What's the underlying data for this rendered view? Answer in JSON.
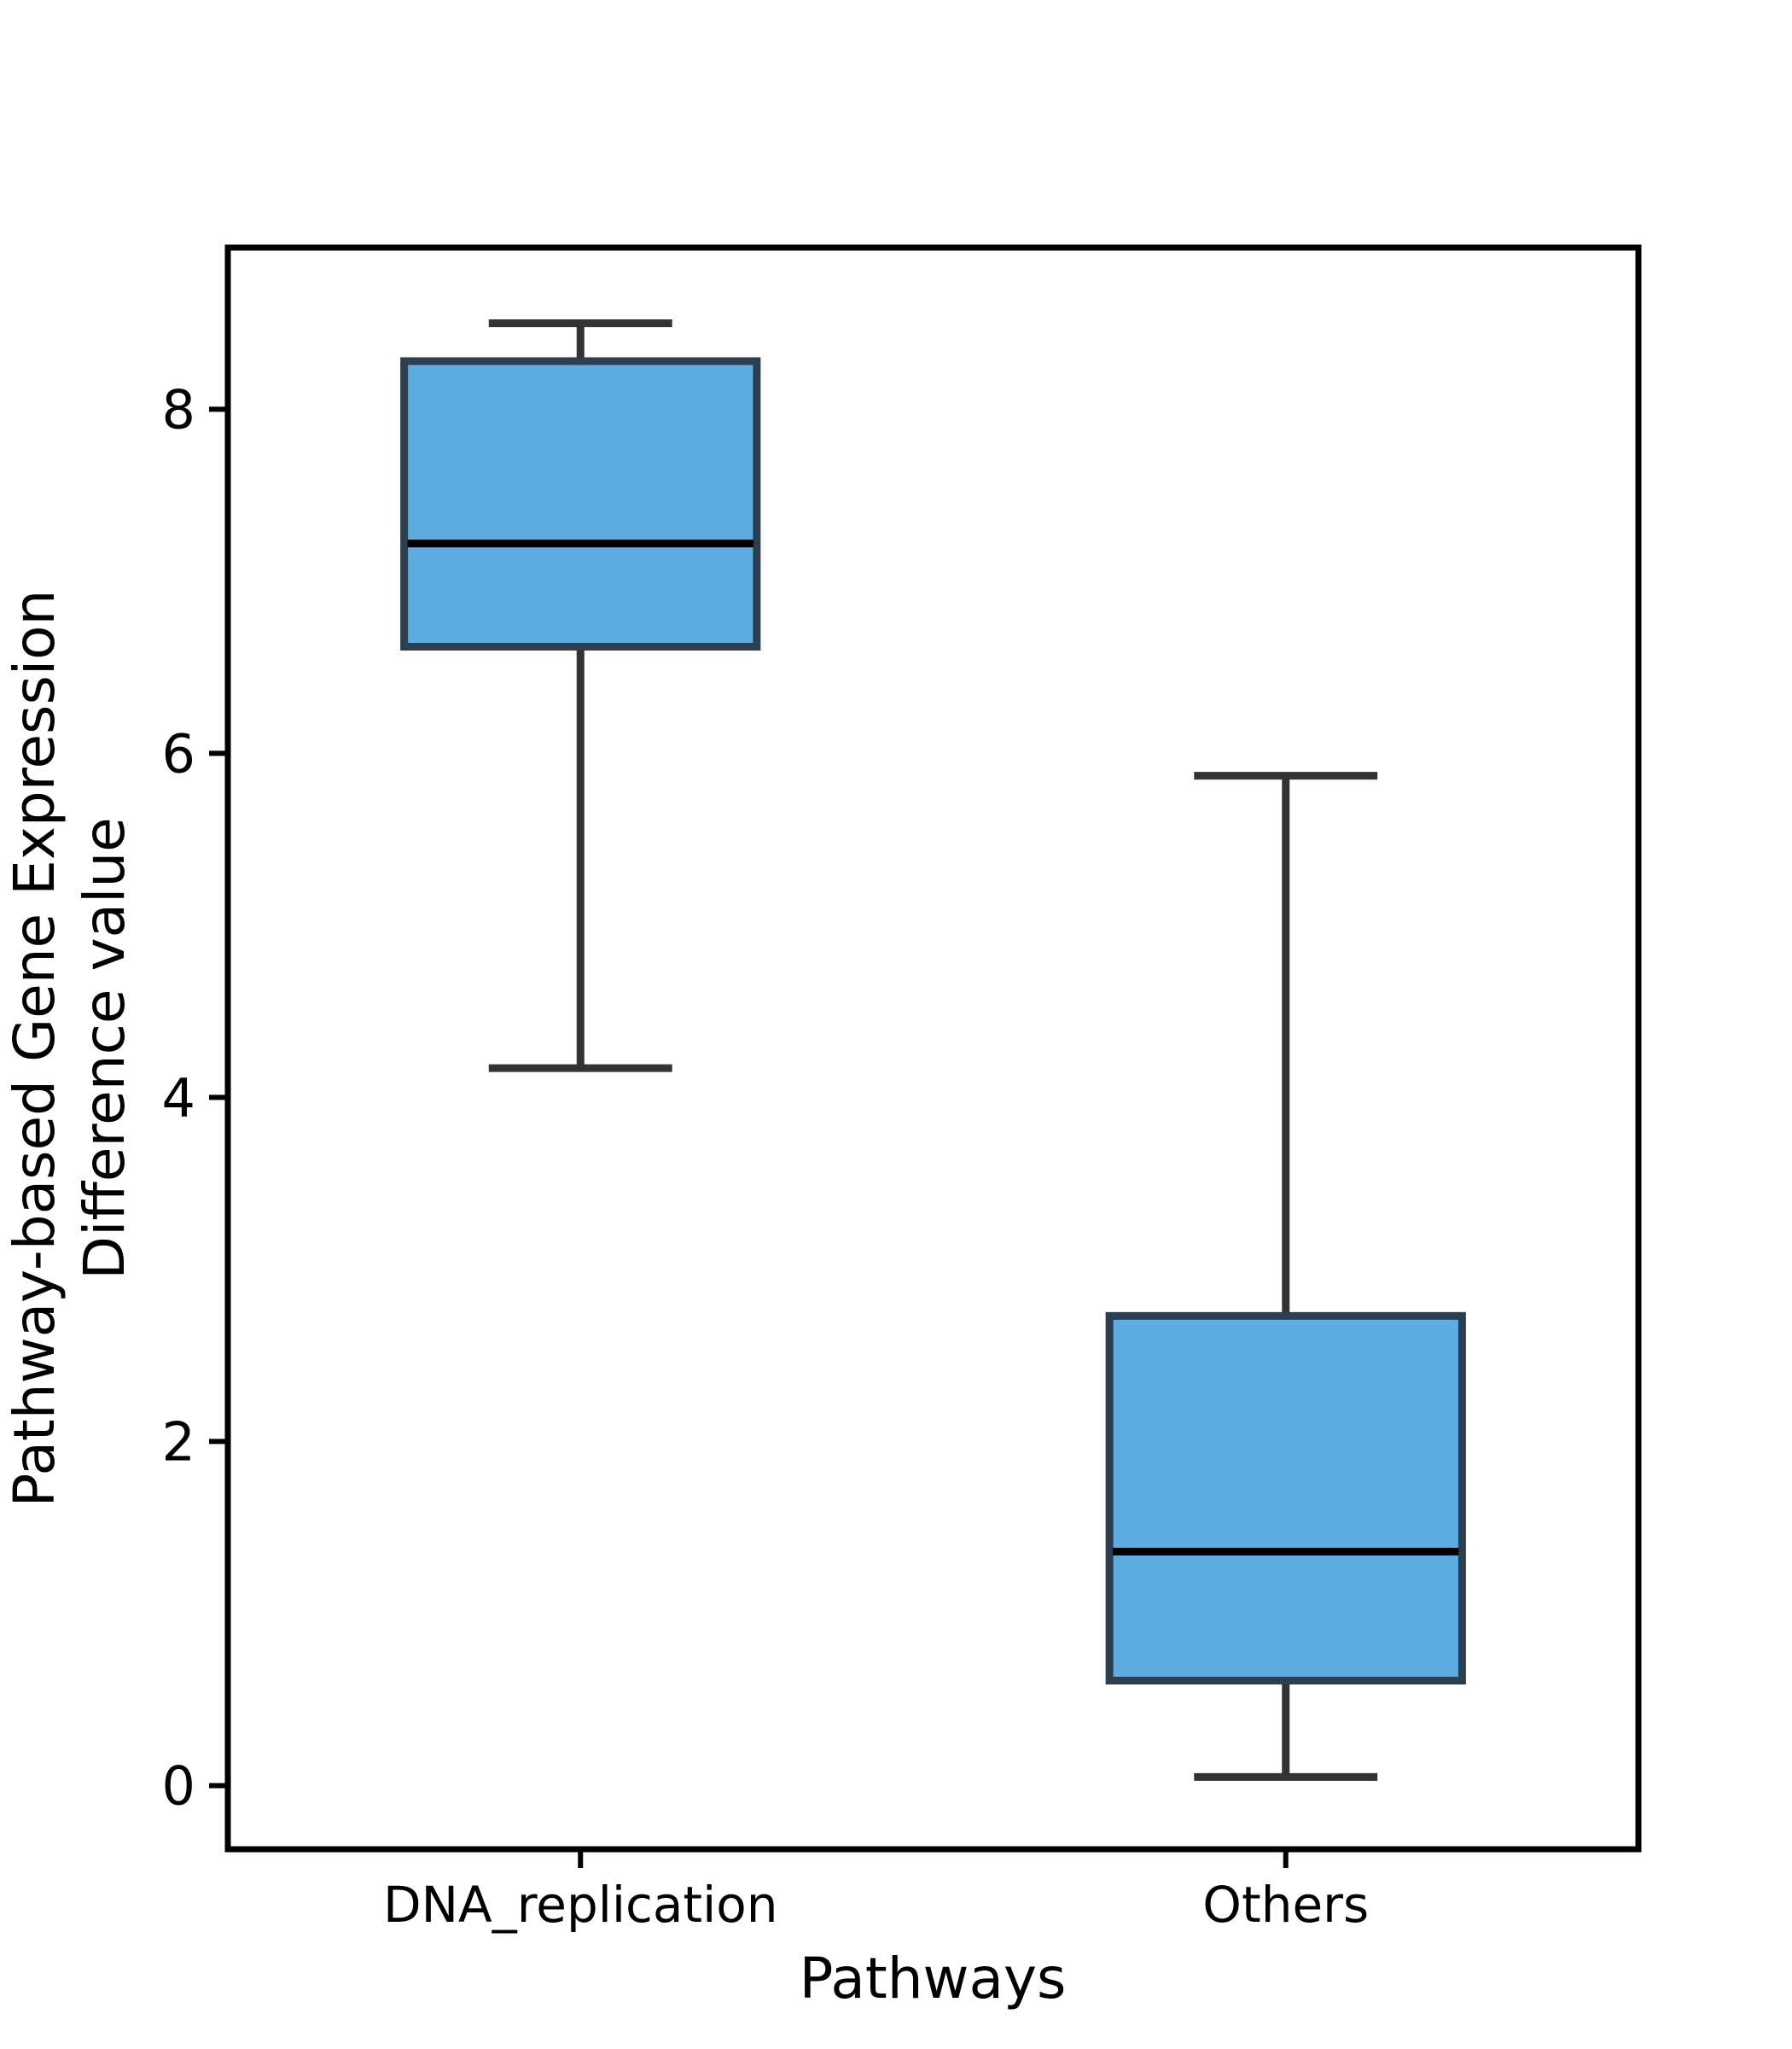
{
  "chart_data": {
    "type": "box",
    "title": "",
    "xlabel": "Pathways",
    "ylabel_line1": "Pathway-based Gene Expression",
    "ylabel_line2": "Difference value",
    "categories": [
      "DNA_replication",
      "Others"
    ],
    "boxes": [
      {
        "name": "DNA_replication",
        "whisker_low": 4.17,
        "q1": 6.62,
        "median": 7.22,
        "q3": 8.28,
        "whisker_high": 8.5
      },
      {
        "name": "Others",
        "whisker_low": 0.05,
        "q1": 0.61,
        "median": 1.36,
        "q3": 2.73,
        "whisker_high": 5.87
      }
    ],
    "ylim": [
      -0.37,
      8.94
    ],
    "yticks": [
      0,
      2,
      4,
      6,
      8
    ],
    "ytick_labels": [
      "0",
      "2",
      "4",
      "6",
      "8"
    ],
    "grid": false,
    "legend": "none",
    "colors": {
      "box_fill": "#5dade2",
      "box_edge": "#2c3e50",
      "whisker": "#333333",
      "median": "#000000",
      "axes": "#000000"
    }
  }
}
